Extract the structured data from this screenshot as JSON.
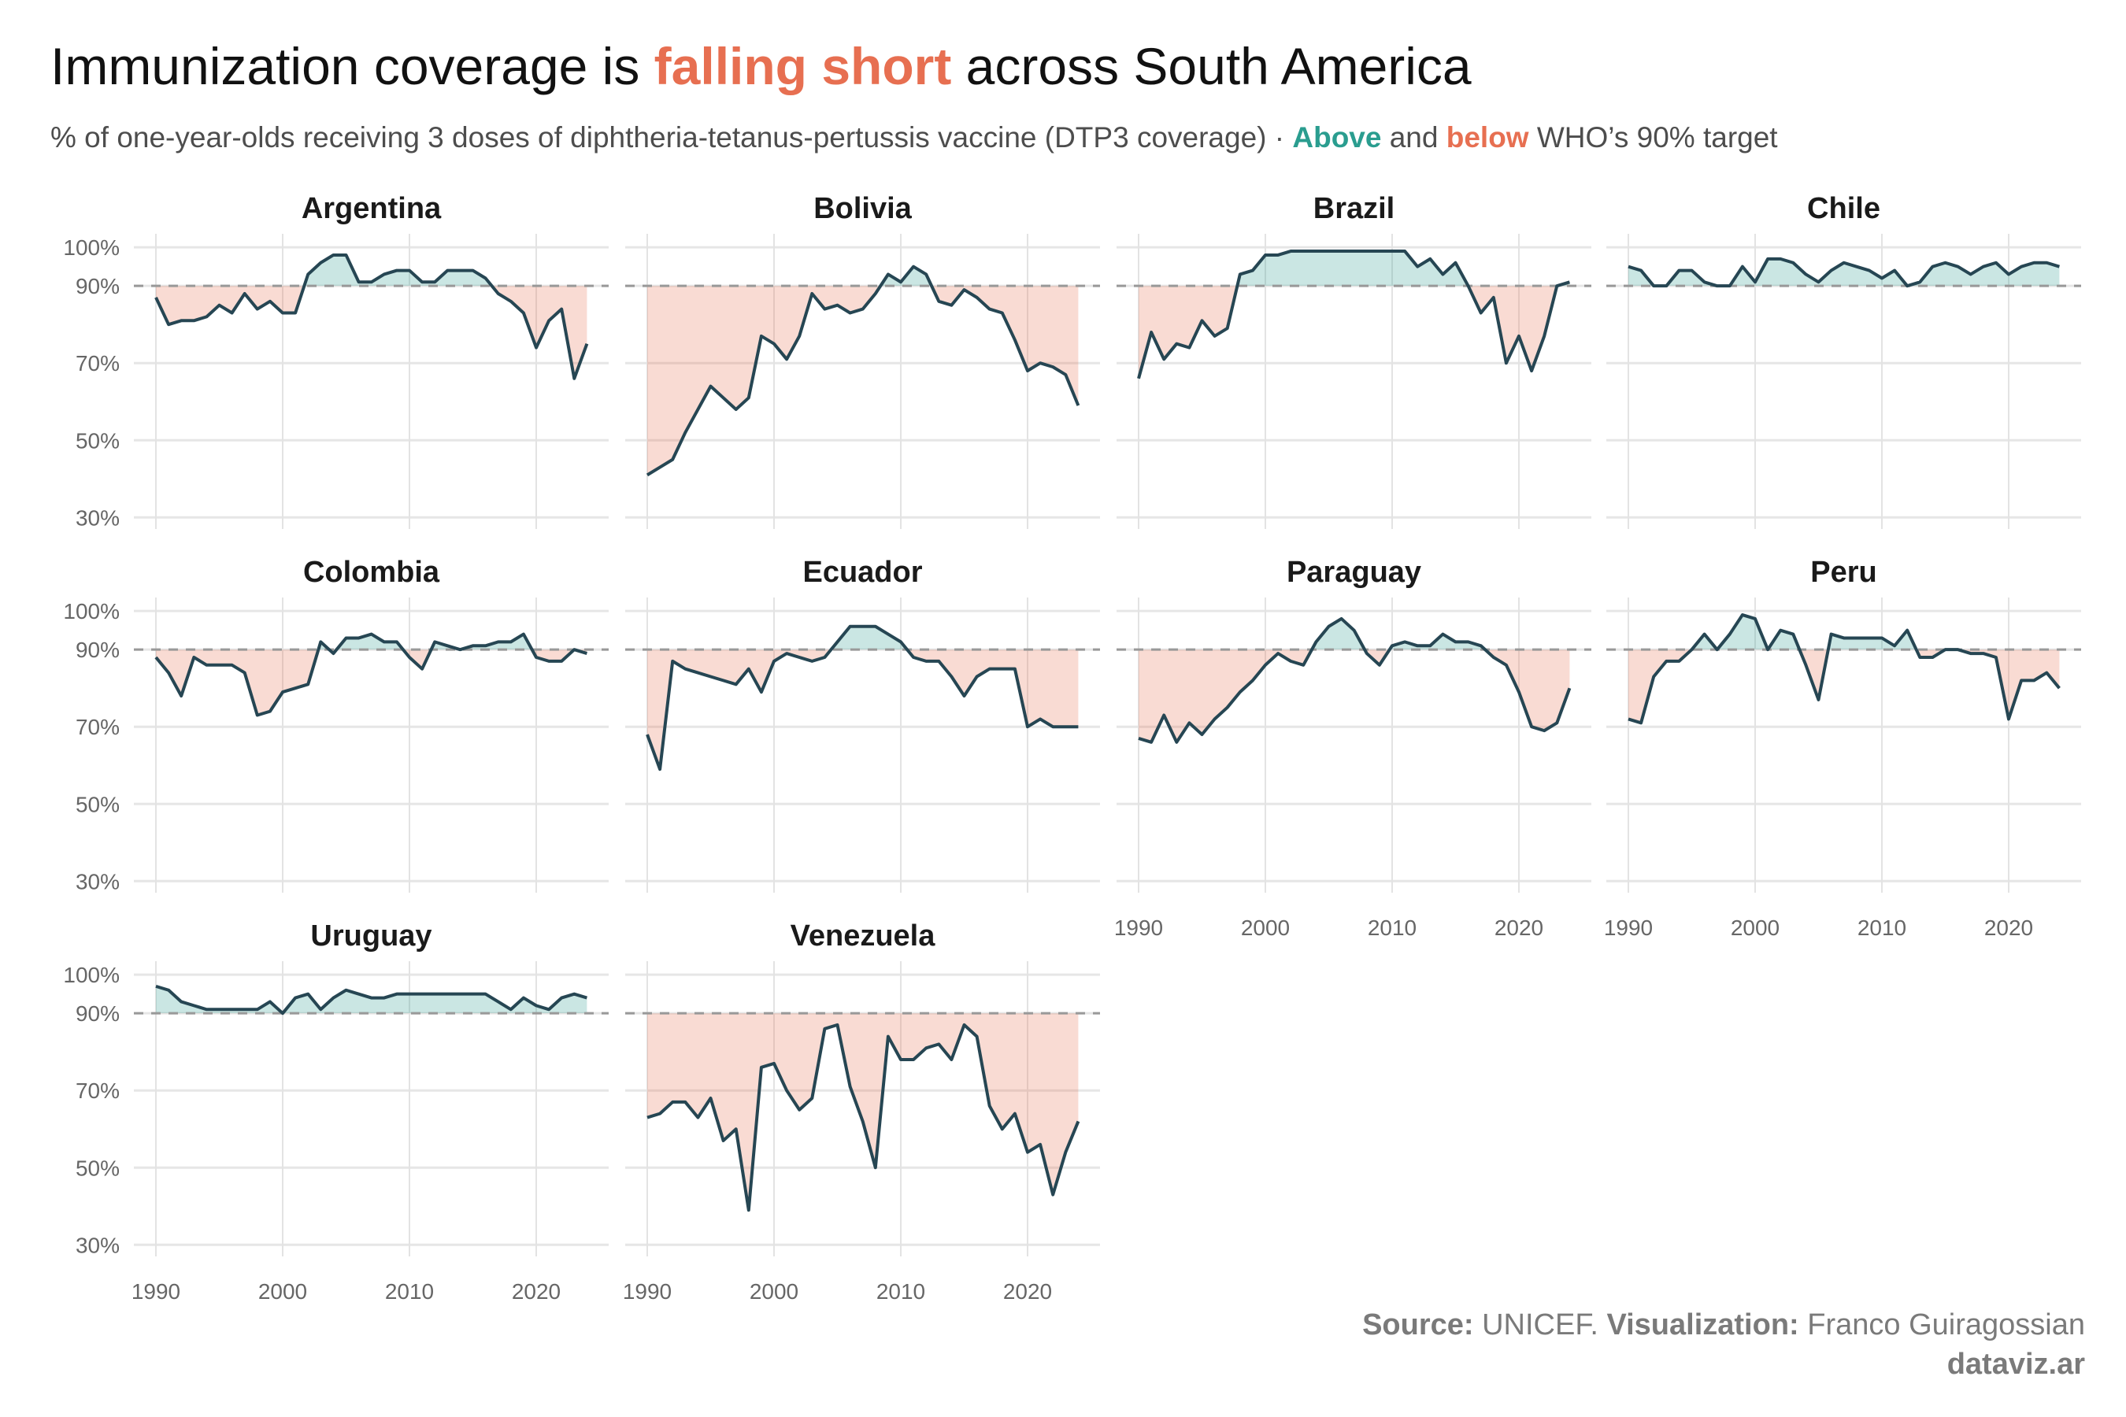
{
  "title": {
    "pre": "Immunization coverage is ",
    "highlight": "falling short",
    "post": " across South America"
  },
  "subtitle": {
    "pre": "% of one-year-olds receiving 3 doses of diphtheria-tetanus-pertussis vaccine (DTP3 coverage) · ",
    "above": "Above",
    "mid": " and ",
    "below": "below",
    "post": " WHO’s 90% target"
  },
  "footer": {
    "source_label": "Source:",
    "source": " UNICEF. ",
    "viz_label": "Visualization:",
    "viz": " Franco Guiragossian",
    "site": "dataviz.ar"
  },
  "colors": {
    "above": "#2a9d8f",
    "below": "#e76f51",
    "line": "#264653",
    "target_line": "#999999"
  },
  "chart_data": {
    "type": "area",
    "facet": "small-multiples",
    "x": [
      1990,
      1991,
      1992,
      1993,
      1994,
      1995,
      1996,
      1997,
      1998,
      1999,
      2000,
      2001,
      2002,
      2003,
      2004,
      2005,
      2006,
      2007,
      2008,
      2009,
      2010,
      2011,
      2012,
      2013,
      2014,
      2015,
      2016,
      2017,
      2018,
      2019,
      2020,
      2021,
      2022,
      2023,
      2024
    ],
    "xticks": [
      "1990",
      "2000",
      "2010",
      "2020"
    ],
    "yticks": [
      "30%",
      "50%",
      "70%",
      "90%",
      "100%"
    ],
    "ylim": [
      30,
      100
    ],
    "threshold": 90,
    "grid": true,
    "series": [
      {
        "name": "Argentina",
        "values": [
          87,
          80,
          81,
          81,
          82,
          85,
          83,
          88,
          84,
          86,
          83,
          83,
          93,
          96,
          98,
          98,
          91,
          91,
          93,
          94,
          94,
          91,
          91,
          94,
          94,
          94,
          92,
          88,
          86,
          83,
          74,
          81,
          84,
          66,
          75
        ]
      },
      {
        "name": "Bolivia",
        "values": [
          41,
          43,
          45,
          52,
          58,
          64,
          61,
          58,
          61,
          77,
          75,
          71,
          77,
          88,
          84,
          85,
          83,
          84,
          88,
          93,
          91,
          95,
          93,
          86,
          85,
          89,
          87,
          84,
          83,
          76,
          68,
          70,
          69,
          67,
          59
        ]
      },
      {
        "name": "Brazil",
        "values": [
          66,
          78,
          71,
          75,
          74,
          81,
          77,
          79,
          93,
          94,
          98,
          98,
          99,
          99,
          99,
          99,
          99,
          99,
          99,
          99,
          99,
          99,
          95,
          97,
          93,
          96,
          90,
          83,
          87,
          70,
          77,
          68,
          77,
          90,
          91
        ]
      },
      {
        "name": "Chile",
        "values": [
          95,
          94,
          90,
          90,
          94,
          94,
          91,
          90,
          90,
          95,
          91,
          97,
          97,
          96,
          93,
          91,
          94,
          96,
          95,
          94,
          92,
          94,
          90,
          91,
          95,
          96,
          95,
          93,
          95,
          96,
          93,
          95,
          96,
          96,
          95
        ]
      },
      {
        "name": "Colombia",
        "values": [
          88,
          84,
          78,
          88,
          86,
          86,
          86,
          84,
          73,
          74,
          79,
          80,
          81,
          92,
          89,
          93,
          93,
          94,
          92,
          92,
          88,
          85,
          92,
          91,
          90,
          91,
          91,
          92,
          92,
          94,
          88,
          87,
          87,
          90,
          89
        ]
      },
      {
        "name": "Ecuador",
        "values": [
          68,
          59,
          87,
          85,
          84,
          83,
          82,
          81,
          85,
          79,
          87,
          89,
          88,
          87,
          88,
          92,
          96,
          96,
          96,
          94,
          92,
          88,
          87,
          87,
          83,
          78,
          83,
          85,
          85,
          85,
          70,
          72,
          70,
          70,
          70
        ]
      },
      {
        "name": "Paraguay",
        "values": [
          67,
          66,
          73,
          66,
          71,
          68,
          72,
          75,
          79,
          82,
          86,
          89,
          87,
          86,
          92,
          96,
          98,
          95,
          89,
          86,
          91,
          92,
          91,
          91,
          94,
          92,
          92,
          91,
          88,
          86,
          79,
          70,
          69,
          71,
          80
        ]
      },
      {
        "name": "Peru",
        "values": [
          72,
          71,
          83,
          87,
          87,
          90,
          94,
          90,
          94,
          99,
          98,
          90,
          95,
          94,
          86,
          77,
          94,
          93,
          93,
          93,
          93,
          91,
          95,
          88,
          88,
          90,
          90,
          89,
          89,
          88,
          72,
          82,
          82,
          84,
          80
        ]
      },
      {
        "name": "Uruguay",
        "values": [
          97,
          96,
          93,
          92,
          91,
          91,
          91,
          91,
          91,
          93,
          90,
          94,
          95,
          91,
          94,
          96,
          95,
          94,
          94,
          95,
          95,
          95,
          95,
          95,
          95,
          95,
          95,
          93,
          91,
          94,
          92,
          91,
          94,
          95,
          94
        ]
      },
      {
        "name": "Venezuela",
        "values": [
          63,
          64,
          67,
          67,
          63,
          68,
          57,
          60,
          39,
          76,
          77,
          70,
          65,
          68,
          86,
          87,
          71,
          62,
          50,
          84,
          78,
          78,
          81,
          82,
          78,
          87,
          84,
          66,
          60,
          64,
          54,
          56,
          43,
          54,
          62
        ]
      }
    ]
  }
}
